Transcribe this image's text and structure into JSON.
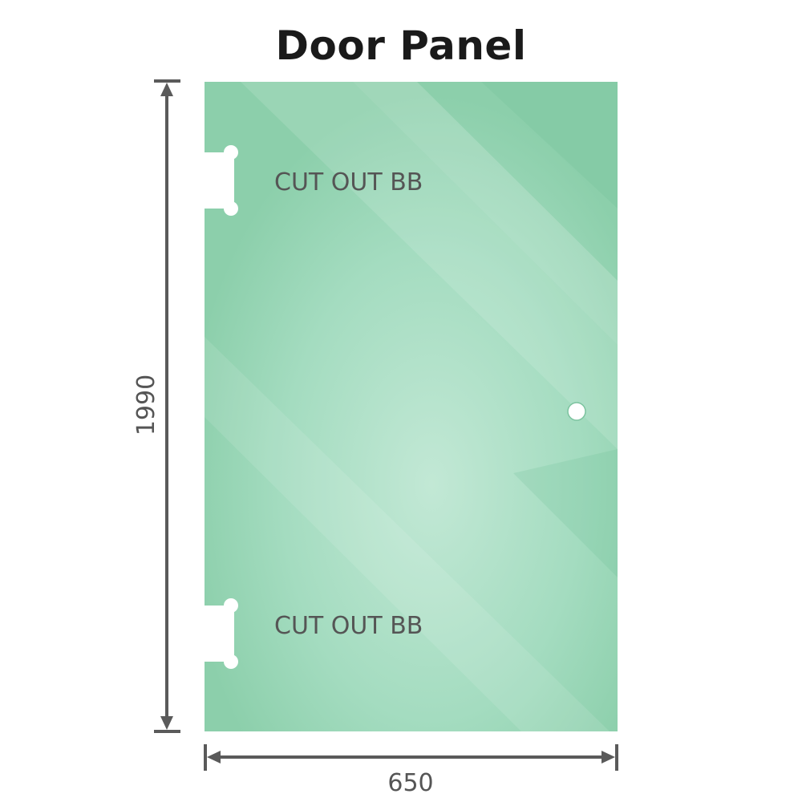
{
  "title": "Door Panel",
  "dimensions": {
    "height": "1990",
    "width": "650"
  },
  "cutouts": [
    {
      "label": "CUT OUT BB"
    },
    {
      "label": "CUT OUT BB"
    }
  ],
  "colors": {
    "glass": "#8ccfaa",
    "glass_light": "#bfe6d2",
    "dimension_line": "#5a5a5a",
    "text": "#555555"
  }
}
